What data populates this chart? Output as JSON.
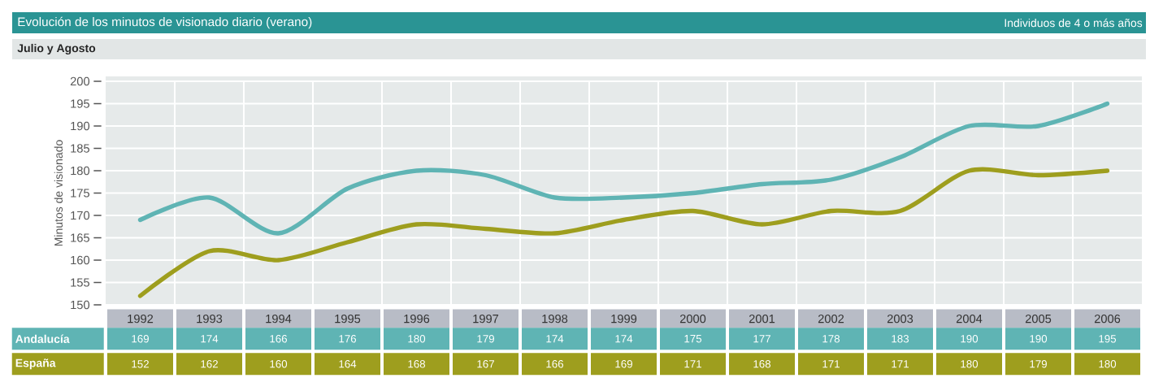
{
  "chart_data": {
    "type": "line",
    "title": "Evolución de los minutos de visionado diario (verano)",
    "subtitle": "Julio y Agosto",
    "annotations": [
      "Individuos de 4 o más años"
    ],
    "ylabel": "Minutos de visionado",
    "categories": [
      "1992",
      "1993",
      "1994",
      "1995",
      "1996",
      "1997",
      "1998",
      "1999",
      "2000",
      "2001",
      "2002",
      "2003",
      "2004",
      "2005",
      "2006"
    ],
    "series": [
      {
        "name": "Andalucía",
        "color": "#5fb4b4",
        "values": [
          169,
          174,
          166,
          176,
          180,
          179,
          174,
          174,
          175,
          177,
          178,
          183,
          190,
          190,
          195
        ]
      },
      {
        "name": "España",
        "color": "#9e9e1e",
        "values": [
          152,
          162,
          160,
          164,
          168,
          167,
          166,
          169,
          171,
          168,
          171,
          171,
          180,
          179,
          180
        ]
      }
    ],
    "ylim": [
      150,
      200
    ],
    "yticks": [
      150,
      155,
      160,
      165,
      170,
      175,
      180,
      185,
      190,
      195,
      200
    ],
    "grid": true,
    "data_labels": true,
    "line_style": "solid"
  }
}
